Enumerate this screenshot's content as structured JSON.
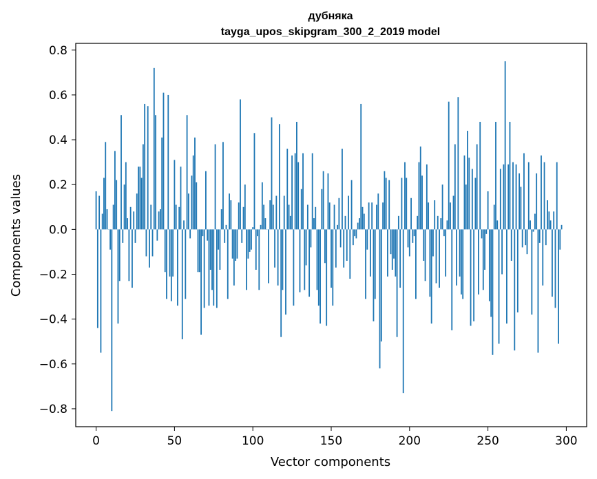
{
  "chart_data": {
    "type": "bar",
    "title_line1": "дубняка",
    "title_line2": "tayga_upos_skipgram_300_2_2019 model",
    "xlabel": "Vector components",
    "ylabel": "Components values",
    "xlim": [
      -13,
      313
    ],
    "ylim": [
      -0.88,
      0.83
    ],
    "xticks": [
      0,
      50,
      100,
      150,
      200,
      250,
      300
    ],
    "xtick_labels": [
      "0",
      "50",
      "100",
      "150",
      "200",
      "250",
      "300"
    ],
    "yticks": [
      -0.8,
      -0.6,
      -0.4,
      -0.2,
      0.0,
      0.2,
      0.4,
      0.6,
      0.8
    ],
    "ytick_labels": [
      "−0.8",
      "−0.6",
      "−0.4",
      "−0.2",
      "0.0",
      "0.2",
      "0.4",
      "0.6",
      "0.8"
    ],
    "bar_color": "#1f77b4",
    "values": [
      0.17,
      -0.44,
      0.15,
      -0.55,
      0.07,
      0.23,
      0.39,
      0.09,
      0.0,
      -0.09,
      -0.81,
      0.11,
      0.35,
      0.22,
      -0.42,
      -0.23,
      0.51,
      -0.06,
      0.2,
      0.3,
      0.05,
      -0.23,
      0.1,
      -0.26,
      0.08,
      -0.06,
      0.16,
      0.28,
      0.28,
      0.23,
      0.38,
      0.56,
      -0.12,
      0.55,
      -0.17,
      0.11,
      -0.12,
      0.72,
      0.51,
      -0.05,
      0.08,
      0.09,
      0.41,
      0.61,
      -0.19,
      -0.31,
      0.6,
      -0.21,
      -0.32,
      -0.21,
      0.31,
      0.11,
      -0.34,
      0.1,
      0.28,
      -0.49,
      0.04,
      -0.31,
      0.51,
      0.16,
      -0.04,
      0.24,
      0.33,
      0.41,
      0.21,
      -0.19,
      -0.19,
      -0.47,
      -0.03,
      -0.35,
      0.26,
      -0.05,
      -0.34,
      -0.18,
      -0.27,
      -0.34,
      0.38,
      -0.35,
      -0.09,
      -0.18,
      0.09,
      0.39,
      -0.06,
      0.02,
      -0.31,
      0.16,
      0.13,
      -0.13,
      -0.25,
      -0.14,
      -0.13,
      0.12,
      0.58,
      -0.06,
      0.1,
      0.2,
      -0.27,
      -0.13,
      -0.1,
      -0.09,
      0.01,
      0.43,
      -0.18,
      -0.03,
      -0.27,
      0.02,
      0.21,
      0.11,
      0.05,
      0.0,
      -0.24,
      0.13,
      0.5,
      0.11,
      -0.17,
      0.15,
      -0.25,
      0.47,
      -0.48,
      -0.27,
      0.15,
      -0.38,
      0.36,
      0.11,
      0.06,
      0.33,
      -0.34,
      0.34,
      0.48,
      0.3,
      -0.28,
      0.18,
      0.34,
      -0.27,
      -0.16,
      0.11,
      -0.3,
      -0.08,
      0.34,
      0.05,
      0.1,
      -0.27,
      -0.34,
      -0.42,
      0.18,
      0.26,
      -0.15,
      -0.43,
      0.25,
      0.12,
      -0.26,
      -0.34,
      0.11,
      -0.17,
      0.02,
      0.14,
      -0.08,
      0.36,
      -0.17,
      0.06,
      -0.14,
      0.15,
      -0.22,
      0.22,
      -0.07,
      -0.03,
      -0.04,
      0.03,
      0.05,
      0.56,
      0.1,
      0.07,
      -0.31,
      -0.09,
      0.12,
      -0.21,
      0.12,
      -0.41,
      -0.31,
      0.11,
      0.16,
      -0.62,
      -0.5,
      0.12,
      0.26,
      0.23,
      -0.21,
      0.22,
      -0.11,
      -0.18,
      -0.13,
      -0.21,
      -0.48,
      0.06,
      -0.26,
      0.23,
      -0.73,
      0.3,
      0.23,
      -0.08,
      -0.12,
      0.14,
      -0.06,
      -0.03,
      -0.31,
      0.06,
      0.3,
      0.37,
      0.24,
      -0.14,
      -0.23,
      0.29,
      0.12,
      -0.3,
      -0.42,
      -0.12,
      0.13,
      -0.24,
      0.06,
      -0.26,
      0.05,
      0.2,
      -0.03,
      -0.21,
      0.04,
      0.57,
      0.12,
      -0.45,
      0.15,
      0.38,
      -0.25,
      0.59,
      -0.21,
      -0.29,
      -0.31,
      0.33,
      0.2,
      0.44,
      0.32,
      -0.43,
      0.27,
      -0.41,
      0.23,
      0.38,
      -0.29,
      0.48,
      -0.04,
      -0.27,
      -0.18,
      -0.02,
      0.17,
      -0.32,
      -0.39,
      -0.56,
      0.11,
      0.48,
      0.04,
      -0.51,
      0.27,
      -0.2,
      0.29,
      0.75,
      -0.42,
      0.29,
      0.48,
      -0.14,
      0.3,
      -0.54,
      0.29,
      -0.37,
      0.25,
      0.19,
      -0.08,
      0.34,
      -0.07,
      -0.11,
      0.3,
      0.04,
      -0.38,
      -0.01,
      0.07,
      0.25,
      -0.55,
      -0.06,
      0.33,
      -0.25,
      0.3,
      -0.07,
      0.13,
      0.08,
      0.04,
      -0.3,
      0.08,
      -0.35,
      0.3,
      -0.51,
      -0.09,
      0.02
    ]
  }
}
